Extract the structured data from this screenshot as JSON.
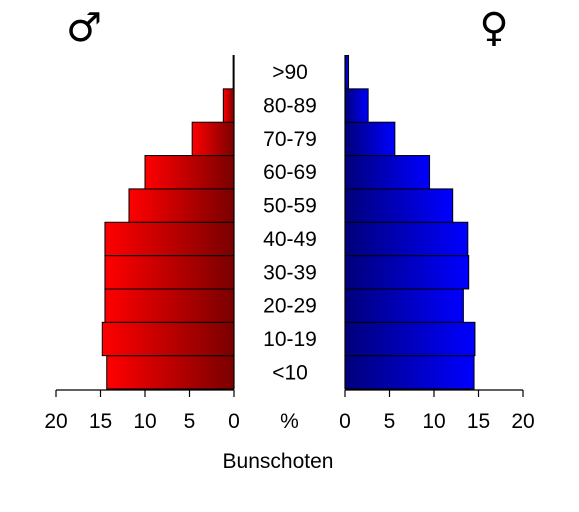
{
  "chart_data": {
    "type": "bar",
    "title": "Bunschoten",
    "categories": [
      "<10",
      "10-19",
      "20-29",
      "30-39",
      "40-49",
      "50-59",
      "60-69",
      "70-79",
      "80-89",
      ">90"
    ],
    "series": [
      {
        "name": "♂",
        "color": "#ff0000",
        "values": [
          14.3,
          14.8,
          14.5,
          14.5,
          14.5,
          11.8,
          10.0,
          4.7,
          1.2,
          0.1
        ]
      },
      {
        "name": "♀",
        "color": "#0000ff",
        "values": [
          14.5,
          14.6,
          13.3,
          13.9,
          13.8,
          12.1,
          9.5,
          5.6,
          2.6,
          0.4
        ]
      }
    ],
    "xlabel": "%",
    "xlim": [
      0,
      20
    ],
    "x_ticks": [
      "20",
      "15",
      "10",
      "5",
      "0",
      "0",
      "5",
      "10",
      "15",
      "20"
    ],
    "grid": false
  }
}
